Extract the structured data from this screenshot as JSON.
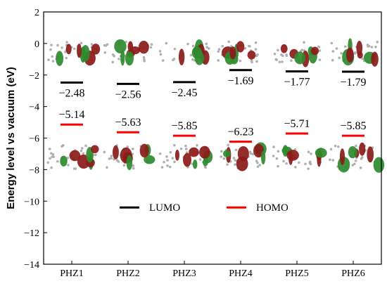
{
  "colors": {
    "lumo": "#000000",
    "homo": "#ff0000",
    "orbital_red": "#8b1a1a",
    "orbital_green": "#2e8b2e",
    "atom_gray": "#b0b0b0"
  },
  "chart_data": {
    "type": "line",
    "ylabel": "Energy level vs vacuum (eV)",
    "xlabel": "",
    "ylim": [
      -14,
      2
    ],
    "yticks": [
      2,
      0,
      -2,
      -4,
      -6,
      -8,
      -10,
      -12,
      -14
    ],
    "categories": [
      "PHZ1",
      "PHZ2",
      "PHZ3",
      "PHZ4",
      "PHZ5",
      "PHZ6"
    ],
    "series": [
      {
        "name": "LUMO",
        "color": "#000000",
        "values": [
          -2.48,
          -2.56,
          -2.45,
          -1.69,
          -1.77,
          -1.79
        ],
        "labels": [
          "−2.48",
          "−2.56",
          "−2.45",
          "−1.69",
          "−1.77",
          "−1.79"
        ]
      },
      {
        "name": "HOMO",
        "color": "#ff0000",
        "values": [
          -5.14,
          -5.63,
          -5.85,
          -6.23,
          -5.71,
          -5.85
        ],
        "labels": [
          "−5.14",
          "−5.63",
          "−5.85",
          "−6.23",
          "−5.71",
          "−5.85"
        ]
      }
    ],
    "legend_position": "bottom-center",
    "grid": false
  }
}
